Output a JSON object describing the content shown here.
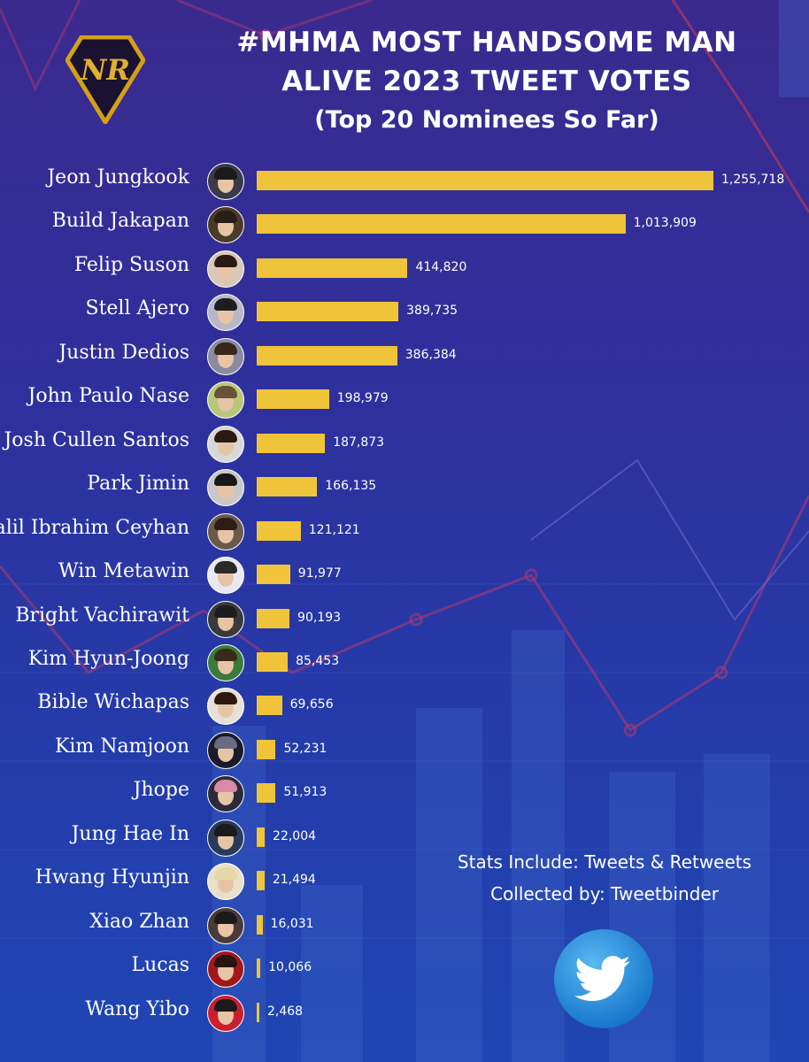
{
  "header": {
    "logo_text": "NR",
    "title_line1": "#MHMA MOST HANDSOME MAN",
    "title_line2": "ALIVE 2023 TWEET VOTES",
    "subtitle": "(Top 20 Nominees So Far)"
  },
  "colors": {
    "bar": "#f0c43a",
    "background_top": "#3a2a8e",
    "background_bottom": "#1f46b4",
    "text": "#ffffff",
    "twitter_blue": "#1d8fe0",
    "logo_gold": "#d4a017"
  },
  "chart_data": {
    "type": "bar",
    "orientation": "horizontal",
    "title": "#MHMA MOST HANDSOME MAN ALIVE 2023 TWEET VOTES",
    "subtitle": "(Top 20 Nominees So Far)",
    "xlabel": "",
    "ylabel": "",
    "grid": false,
    "legend": "none",
    "xlim": [
      0,
      1255718
    ],
    "categories": [
      "Jeon Jungkook",
      "Build Jakapan",
      "Felip Suson",
      "Stell Ajero",
      "Justin Dedios",
      "John Paulo Nase",
      "Josh Cullen Santos",
      "Park Jimin",
      "Halil Ibrahim Ceyhan",
      "Win Metawin",
      "Bright Vachirawit",
      "Kim Hyun-Joong",
      "Bible Wichapas",
      "Kim Namjoon",
      "Jhope",
      "Jung Hae In",
      "Hwang Hyunjin",
      "Xiao Zhan",
      "Lucas",
      "Wang Yibo"
    ],
    "values": [
      1255718,
      1013909,
      414820,
      389735,
      386384,
      198979,
      187873,
      166135,
      121121,
      91977,
      90193,
      85453,
      69656,
      52231,
      51913,
      22004,
      21494,
      16031,
      10066,
      2468
    ],
    "value_labels": [
      "1,255,718",
      "1,013,909",
      "414,820",
      "389,735",
      "386,384",
      "198,979",
      "187,873",
      "166,135",
      "121,121",
      "91,977",
      "90,193",
      "85,453",
      "69,656",
      "52,231",
      "51,913",
      "22,004",
      "21,494",
      "16,031",
      "10,066",
      "2,468"
    ]
  },
  "footer": {
    "stats_line1": "Stats Include: Tweets & Retweets",
    "stats_line2": "Collected by: Tweetbinder",
    "icon": "twitter-bird-icon"
  }
}
